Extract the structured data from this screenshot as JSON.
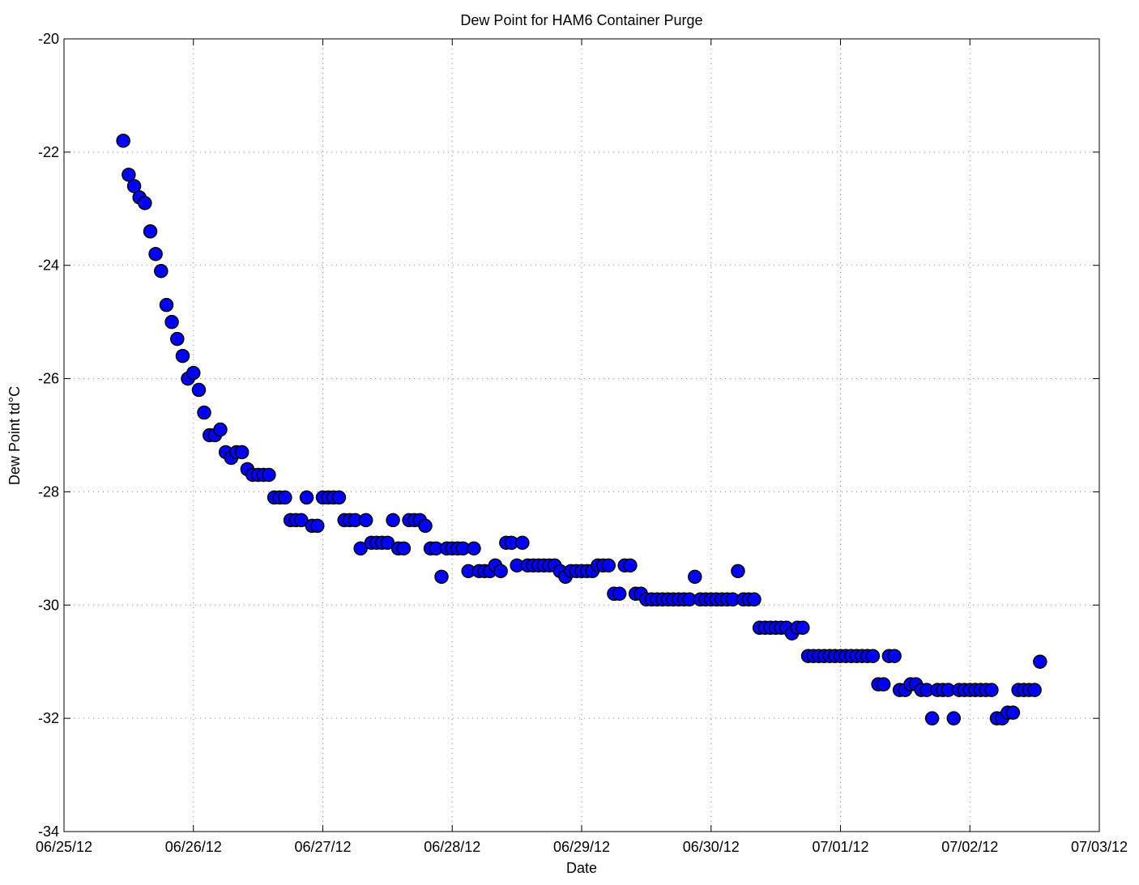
{
  "chart_data": {
    "type": "scatter",
    "title": "Dew Point for HAM6 Container Purge",
    "xlabel": "Date",
    "ylabel": "Dew Point td°C",
    "xlim": [
      0,
      8
    ],
    "xticks": [
      {
        "value": 0,
        "label": "06/25/12"
      },
      {
        "value": 1,
        "label": "06/26/12"
      },
      {
        "value": 2,
        "label": "06/27/12"
      },
      {
        "value": 3,
        "label": "06/28/12"
      },
      {
        "value": 4,
        "label": "06/29/12"
      },
      {
        "value": 5,
        "label": "06/30/12"
      },
      {
        "value": 6,
        "label": "07/01/12"
      },
      {
        "value": 7,
        "label": "07/02/12"
      },
      {
        "value": 8,
        "label": "07/03/12"
      }
    ],
    "ylim": [
      -34,
      -20
    ],
    "yticks": [
      -34,
      -32,
      -30,
      -28,
      -26,
      -24,
      -22,
      -20
    ],
    "grid": true,
    "series": [
      {
        "color": "#0000ff",
        "x": [
          0.458,
          0.5,
          0.542,
          0.583,
          0.625,
          0.667,
          0.708,
          0.75,
          0.792,
          0.833,
          0.875,
          0.917,
          0.958,
          1,
          1.042,
          1.083,
          1.125,
          1.167,
          1.208,
          1.25,
          1.292,
          1.333,
          1.375,
          1.417,
          1.458,
          1.5,
          1.542,
          1.583,
          1.625,
          1.667,
          1.708,
          1.75,
          1.792,
          1.833,
          1.875,
          1.917,
          1.958,
          2,
          2.042,
          2.083,
          2.125,
          2.167,
          2.208,
          2.25,
          2.292,
          2.333,
          2.375,
          2.417,
          2.458,
          2.5,
          2.542,
          2.583,
          2.625,
          2.667,
          2.708,
          2.75,
          2.792,
          2.833,
          2.875,
          2.917,
          2.958,
          3,
          3.042,
          3.083,
          3.125,
          3.167,
          3.208,
          3.25,
          3.292,
          3.333,
          3.375,
          3.417,
          3.458,
          3.5,
          3.542,
          3.583,
          3.625,
          3.667,
          3.708,
          3.75,
          3.792,
          3.833,
          3.875,
          3.917,
          3.958,
          4,
          4.042,
          4.083,
          4.125,
          4.167,
          4.208,
          4.25,
          4.292,
          4.333,
          4.375,
          4.417,
          4.458,
          4.5,
          4.542,
          4.583,
          4.625,
          4.667,
          4.708,
          4.75,
          4.792,
          4.833,
          4.875,
          4.917,
          4.958,
          5,
          5.042,
          5.083,
          5.125,
          5.167,
          5.208,
          5.25,
          5.292,
          5.333,
          5.375,
          5.417,
          5.458,
          5.5,
          5.542,
          5.583,
          5.625,
          5.667,
          5.708,
          5.75,
          5.792,
          5.833,
          5.875,
          5.917,
          5.958,
          6,
          6.042,
          6.083,
          6.125,
          6.167,
          6.208,
          6.25,
          6.292,
          6.333,
          6.375,
          6.417,
          6.458,
          6.5,
          6.542,
          6.583,
          6.625,
          6.667,
          6.708,
          6.75,
          6.792,
          6.833,
          6.875,
          6.917,
          6.958,
          7,
          7.042,
          7.083,
          7.125,
          7.167,
          7.208,
          7.25,
          7.292,
          7.333,
          7.375,
          7.417,
          7.458,
          7.5,
          7.542
        ],
        "values": [
          -21.8,
          -22.4,
          -22.6,
          -22.8,
          -22.9,
          -23.4,
          -23.8,
          -24.1,
          -24.7,
          -25.0,
          -25.3,
          -25.6,
          -26.0,
          -25.9,
          -26.2,
          -26.6,
          -27.0,
          -27.0,
          -26.9,
          -27.3,
          -27.4,
          -27.3,
          -27.3,
          -27.6,
          -27.7,
          -27.7,
          -27.7,
          -27.7,
          -28.1,
          -28.1,
          -28.1,
          -28.5,
          -28.5,
          -28.5,
          -28.1,
          -28.6,
          -28.6,
          -28.1,
          -28.1,
          -28.1,
          -28.1,
          -28.5,
          -28.5,
          -28.5,
          -29.0,
          -28.5,
          -28.9,
          -28.9,
          -28.9,
          -28.9,
          -28.5,
          -29.0,
          -29.0,
          -28.5,
          -28.5,
          -28.5,
          -28.6,
          -29.0,
          -29.0,
          -29.5,
          -29.0,
          -29.0,
          -29.0,
          -29.0,
          -29.4,
          -29.0,
          -29.4,
          -29.4,
          -29.4,
          -29.3,
          -29.4,
          -28.9,
          -28.9,
          -29.3,
          -28.9,
          -29.3,
          -29.3,
          -29.3,
          -29.3,
          -29.3,
          -29.3,
          -29.4,
          -29.5,
          -29.4,
          -29.4,
          -29.4,
          -29.4,
          -29.4,
          -29.3,
          -29.3,
          -29.3,
          -29.8,
          -29.8,
          -29.3,
          -29.3,
          -29.8,
          -29.8,
          -29.9,
          -29.9,
          -29.9,
          -29.9,
          -29.9,
          -29.9,
          -29.9,
          -29.9,
          -29.9,
          -29.5,
          -29.9,
          -29.9,
          -29.9,
          -29.9,
          -29.9,
          -29.9,
          -29.9,
          -29.4,
          -29.9,
          -29.9,
          -29.9,
          -30.4,
          -30.4,
          -30.4,
          -30.4,
          -30.4,
          -30.4,
          -30.5,
          -30.4,
          -30.4,
          -30.9,
          -30.9,
          -30.9,
          -30.9,
          -30.9,
          -30.9,
          -30.9,
          -30.9,
          -30.9,
          -30.9,
          -30.9,
          -30.9,
          -30.9,
          -31.4,
          -31.4,
          -30.9,
          -30.9,
          -31.5,
          -31.5,
          -31.4,
          -31.4,
          -31.5,
          -31.5,
          -32.0,
          -31.5,
          -31.5,
          -31.5,
          -32.0,
          -31.5,
          -31.5,
          -31.5,
          -31.5,
          -31.5,
          -31.5,
          -31.5,
          -32.0,
          -32.0,
          -31.9,
          -31.9,
          -31.5,
          -31.5,
          -31.5,
          -31.5,
          -31.0
        ]
      }
    ]
  }
}
